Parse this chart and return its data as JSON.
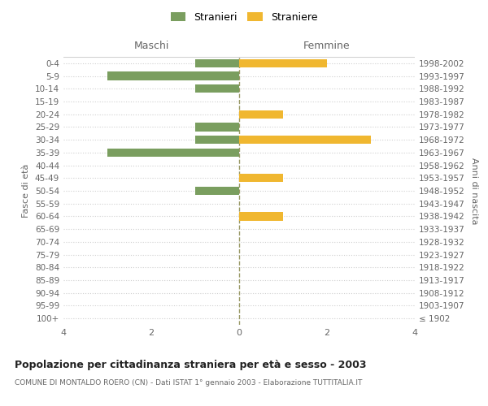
{
  "age_groups": [
    "100+",
    "95-99",
    "90-94",
    "85-89",
    "80-84",
    "75-79",
    "70-74",
    "65-69",
    "60-64",
    "55-59",
    "50-54",
    "45-49",
    "40-44",
    "35-39",
    "30-34",
    "25-29",
    "20-24",
    "15-19",
    "10-14",
    "5-9",
    "0-4"
  ],
  "birth_years": [
    "≤ 1902",
    "1903-1907",
    "1908-1912",
    "1913-1917",
    "1918-1922",
    "1923-1927",
    "1928-1932",
    "1933-1937",
    "1938-1942",
    "1943-1947",
    "1948-1952",
    "1953-1957",
    "1958-1962",
    "1963-1967",
    "1968-1972",
    "1973-1977",
    "1978-1982",
    "1983-1987",
    "1988-1992",
    "1993-1997",
    "1998-2002"
  ],
  "maschi": [
    0,
    0,
    0,
    0,
    0,
    0,
    0,
    0,
    0,
    0,
    1,
    0,
    0,
    3,
    1,
    1,
    0,
    0,
    1,
    3,
    1
  ],
  "femmine": [
    0,
    0,
    0,
    0,
    0,
    0,
    0,
    0,
    1,
    0,
    0,
    1,
    0,
    0,
    3,
    0,
    1,
    0,
    0,
    0,
    2
  ],
  "color_maschi": "#7a9e5f",
  "color_femmine": "#f0b730",
  "title": "Popolazione per cittadinanza straniera per età e sesso - 2003",
  "subtitle": "COMUNE DI MONTALDO ROERO (CN) - Dati ISTAT 1° gennaio 2003 - Elaborazione TUTTITALIA.IT",
  "legend_maschi": "Stranieri",
  "legend_femmine": "Straniere",
  "xlabel_left": "Maschi",
  "xlabel_right": "Femmine",
  "ylabel_left": "Fasce di età",
  "ylabel_right": "Anni di nascita",
  "xlim": 4,
  "background_color": "#ffffff",
  "grid_color": "#d0d0d0"
}
